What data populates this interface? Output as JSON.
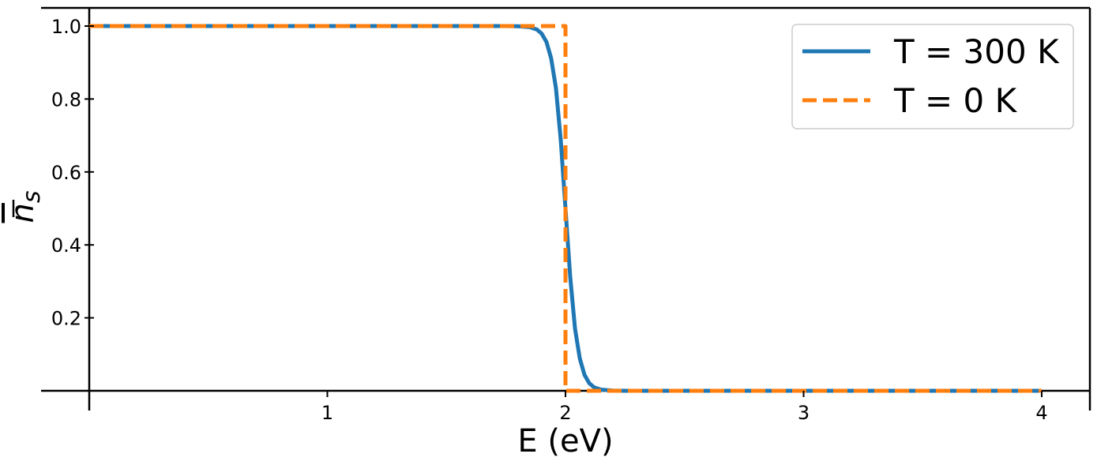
{
  "chart_data": {
    "type": "line",
    "title": "",
    "xlabel": "E (eV)",
    "ylabel": "n̄_s",
    "xlim": [
      -0.2,
      4.2
    ],
    "ylim": [
      -0.0,
      1.05
    ],
    "x_ticks": [
      1,
      2,
      3,
      4
    ],
    "x_tick_labels": [
      "1",
      "2",
      "3",
      "4"
    ],
    "y_ticks": [
      0.2,
      0.4,
      0.6,
      0.8,
      1.0
    ],
    "y_tick_labels": [
      "0.2",
      "0.4",
      "0.6",
      "0.8",
      "1.0"
    ],
    "grid": false,
    "legend_position": "top-right",
    "fermi_energy_eV": 2.0,
    "series": [
      {
        "name": "T = 300 K",
        "style": "solid",
        "color": "#1f77b4",
        "x": [
          0.0,
          0.5,
          1.0,
          1.5,
          1.75,
          1.8,
          1.85,
          1.88,
          1.9,
          1.92,
          1.94,
          1.96,
          1.98,
          2.0,
          2.02,
          2.04,
          2.06,
          2.08,
          2.1,
          2.12,
          2.15,
          2.2,
          2.25,
          2.5,
          3.0,
          3.5,
          4.0
        ],
        "y": [
          1.0,
          1.0,
          1.0,
          1.0,
          0.9999,
          0.9996,
          0.997,
          0.9904,
          0.9793,
          0.9564,
          0.9111,
          0.83,
          0.688,
          0.5,
          0.312,
          0.17,
          0.0889,
          0.0436,
          0.0207,
          0.0096,
          0.003,
          0.0004,
          0.0001,
          0.0,
          0.0,
          0.0,
          0.0
        ]
      },
      {
        "name": "T = 0 K",
        "style": "dashed",
        "color": "#ff7f0e",
        "x": [
          0.0,
          2.0,
          2.0,
          4.0
        ],
        "y": [
          1.0,
          1.0,
          0.0,
          0.0
        ]
      }
    ]
  }
}
